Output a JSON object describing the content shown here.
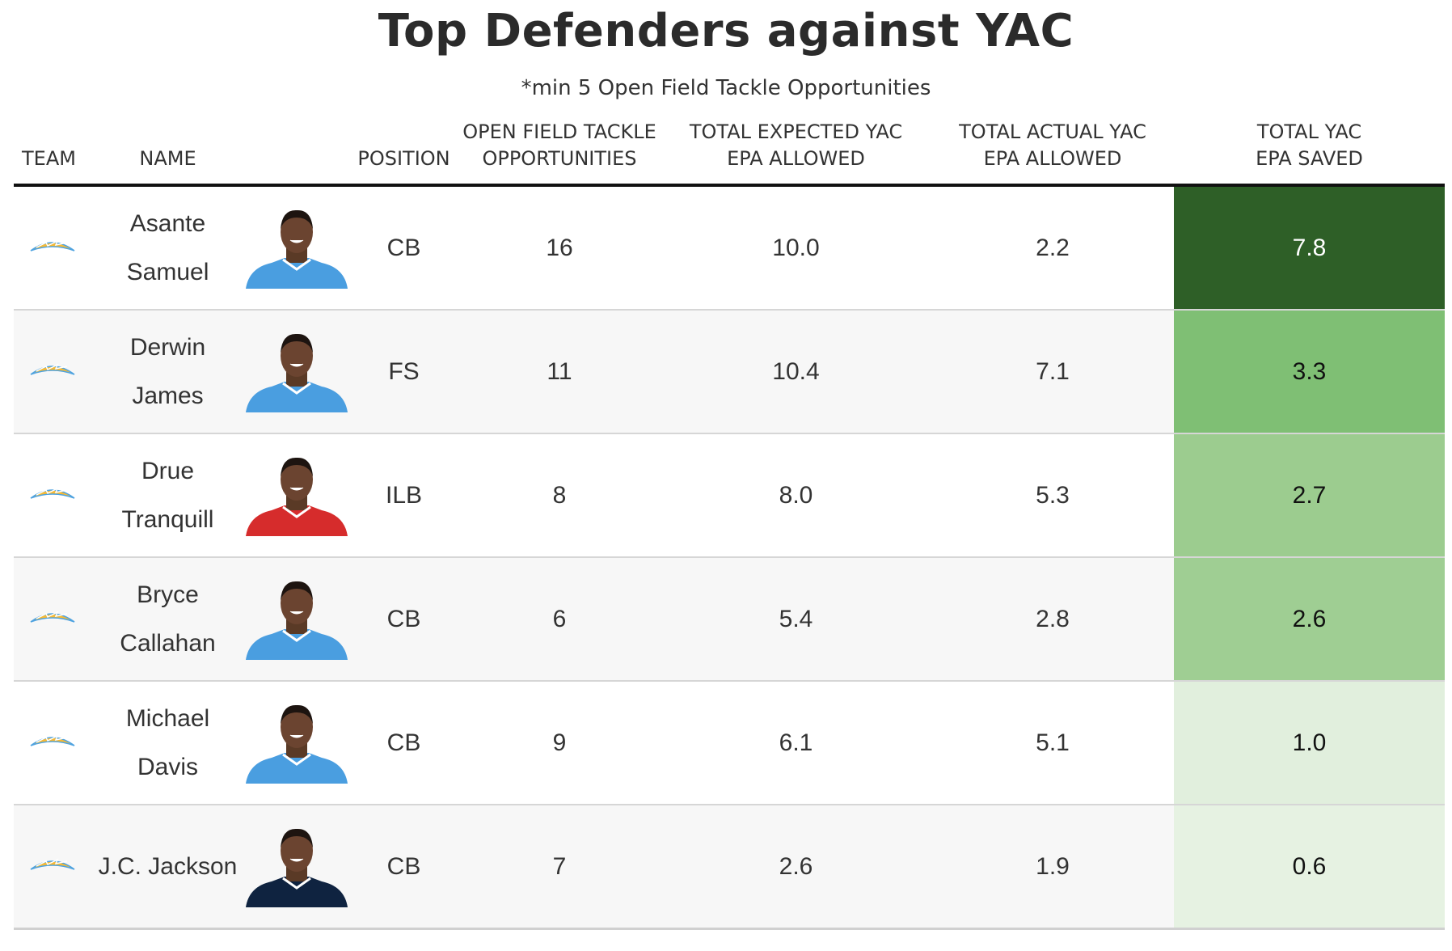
{
  "title": "Top Defenders against YAC",
  "subtitle": "*min 5 Open Field Tackle Opportunities",
  "columns": {
    "team": "TEAM",
    "name": "NAME",
    "position": "POSITION",
    "oft_line1": "OPEN FIELD TACKLE",
    "oft_line2": "OPPORTUNITIES",
    "exp_line1": "TOTAL EXPECTED YAC",
    "exp_line2": "EPA ALLOWED",
    "act_line1": "TOTAL ACTUAL YAC",
    "act_line2": "EPA ALLOWED",
    "saved_line1": "TOTAL YAC",
    "saved_line2": "EPA SAVED"
  },
  "colors": {
    "team_logo": "#f5b935",
    "team_logo_secondary": "#4fa3e0",
    "jersey_chargers": "#4a9ee0",
    "jersey_chiefs": "#d62c2c",
    "jersey_patriots": "#0f2340"
  },
  "chart_data": {
    "type": "table",
    "title": "Top Defenders against YAC",
    "subtitle": "*min 5 Open Field Tackle Opportunities",
    "columns": [
      "TEAM",
      "NAME",
      "POSITION",
      "OPEN FIELD TACKLE OPPORTUNITIES",
      "TOTAL EXPECTED YAC EPA ALLOWED",
      "TOTAL ACTUAL YAC EPA ALLOWED",
      "TOTAL YAC EPA SAVED"
    ],
    "rows": [
      {
        "team_logo": "chargers-logo-icon",
        "name_line1": "Asante",
        "name_line2": "Samuel",
        "photo": "player-headshot-chargers",
        "position": "CB",
        "opportunities": "16",
        "expected": "10.0",
        "actual": "2.2",
        "saved": "7.8",
        "saved_color": "#2e5f27",
        "saved_text_color": "#ffffff"
      },
      {
        "team_logo": "chargers-logo-icon",
        "name_line1": "Derwin",
        "name_line2": "James",
        "photo": "player-headshot-chargers",
        "position": "FS",
        "opportunities": "11",
        "expected": "10.4",
        "actual": "7.1",
        "saved": "3.3",
        "saved_color": "#7fbf74",
        "saved_text_color": "#111111"
      },
      {
        "team_logo": "chargers-logo-icon",
        "name_line1": "Drue",
        "name_line2": "Tranquill",
        "photo": "player-headshot-chiefs",
        "position": "ILB",
        "opportunities": "8",
        "expected": "8.0",
        "actual": "5.3",
        "saved": "2.7",
        "saved_color": "#9ccc8f",
        "saved_text_color": "#111111"
      },
      {
        "team_logo": "chargers-logo-icon",
        "name_line1": "Bryce",
        "name_line2": "Callahan",
        "photo": "player-headshot-chargers",
        "position": "CB",
        "opportunities": "6",
        "expected": "5.4",
        "actual": "2.8",
        "saved": "2.6",
        "saved_color": "#9fce93",
        "saved_text_color": "#111111"
      },
      {
        "team_logo": "chargers-logo-icon",
        "name_line1": "Michael",
        "name_line2": "Davis",
        "photo": "player-headshot-chargers",
        "position": "CB",
        "opportunities": "9",
        "expected": "6.1",
        "actual": "5.1",
        "saved": "1.0",
        "saved_color": "#e1efdd",
        "saved_text_color": "#111111"
      },
      {
        "team_logo": "chargers-logo-icon",
        "name_line1": "J.C. Jackson",
        "name_line2": "",
        "photo": "player-headshot-patriots",
        "position": "CB",
        "opportunities": "7",
        "expected": "2.6",
        "actual": "1.9",
        "saved": "0.6",
        "saved_color": "#e6f2e2",
        "saved_text_color": "#111111"
      }
    ]
  }
}
